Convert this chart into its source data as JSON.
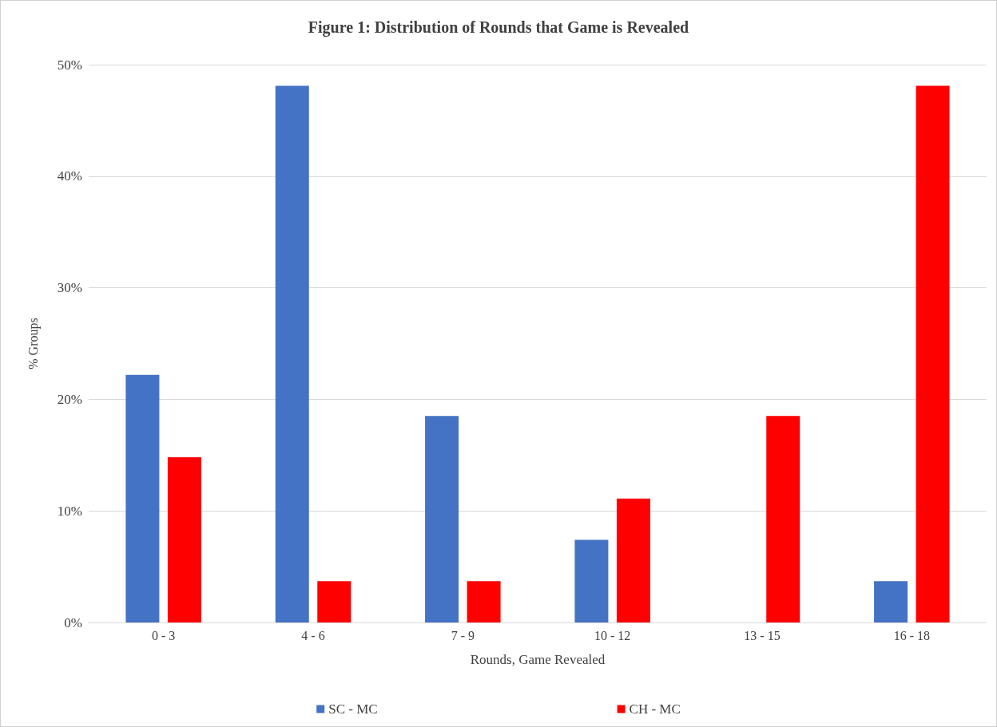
{
  "chart_data": {
    "type": "bar",
    "title": "Figure 1: Distribution of Rounds that Game is Revealed",
    "xlabel": "Rounds, Game Revealed",
    "ylabel": "% Groups",
    "categories": [
      "0 - 3",
      "4 - 6",
      "7 - 9",
      "10 - 12",
      "13 - 15",
      "16 - 18"
    ],
    "series": [
      {
        "name": "SC - MC",
        "color": "#4472c4",
        "values": [
          22.2,
          48.1,
          18.5,
          7.4,
          0,
          3.7
        ]
      },
      {
        "name": "CH - MC",
        "color": "#ff0000",
        "values": [
          14.8,
          3.7,
          3.7,
          11.1,
          18.5,
          48.1
        ]
      }
    ],
    "ylim": [
      0,
      50
    ],
    "yticks": [
      {
        "value": 0,
        "label": "0%"
      },
      {
        "value": 10,
        "label": "10%"
      },
      {
        "value": 20,
        "label": "20%"
      },
      {
        "value": 30,
        "label": "30%"
      },
      {
        "value": 40,
        "label": "40%"
      },
      {
        "value": 50,
        "label": "50%"
      }
    ],
    "grid": "y",
    "legend": "bottom"
  }
}
